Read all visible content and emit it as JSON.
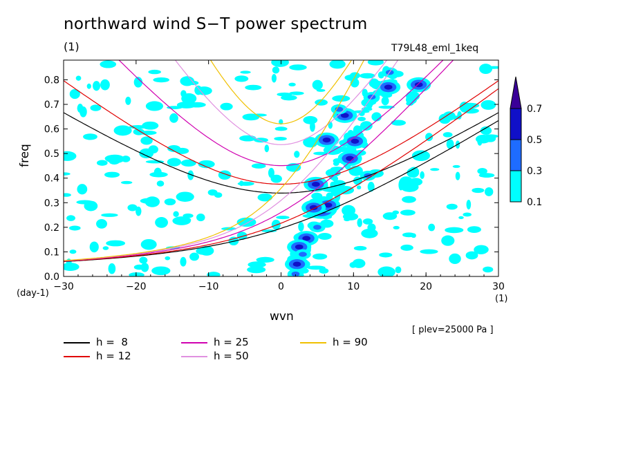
{
  "page": {
    "title": "northward wind S−T power spectrum",
    "unit_top": "(1)",
    "run_name": "T79L48_eml_1keq",
    "plev": "[ plev=25000 Pa ]"
  },
  "chart_data": {
    "type": "heatmap",
    "title": "northward wind S−T power spectrum",
    "xlabel": "wvn",
    "ylabel": "freq",
    "x_unit": "(1)",
    "y_unit": "(day-1)",
    "xlim": [
      -30,
      30
    ],
    "ylim": [
      0,
      0.88
    ],
    "x_ticks": [
      "−30",
      "−20",
      "−10",
      "0",
      "10",
      "20",
      "30"
    ],
    "x_tick_values": [
      -30,
      -20,
      -10,
      0,
      10,
      20,
      30
    ],
    "y_ticks": [
      "0.0",
      "0.1",
      "0.2",
      "0.3",
      "0.4",
      "0.5",
      "0.6",
      "0.7",
      "0.8"
    ],
    "y_tick_values": [
      0,
      0.1,
      0.2,
      0.3,
      0.4,
      0.5,
      0.6,
      0.7,
      0.8
    ],
    "colorbar": {
      "levels": [
        "0.1",
        "0.3",
        "0.5",
        "0.7"
      ],
      "colors": [
        "#00ffff",
        "#1e6cff",
        "#1010c8",
        "#3a0098"
      ]
    },
    "dispersion_curves": [
      {
        "label": "h =  8",
        "h": 8,
        "color": "#000000"
      },
      {
        "label": "h = 12",
        "h": 12,
        "color": "#e00000"
      },
      {
        "label": "h = 25",
        "h": 25,
        "color": "#d000b0"
      },
      {
        "label": "h = 50",
        "h": 50,
        "color": "#e090e0"
      },
      {
        "label": "h = 90",
        "h": 90,
        "color": "#f0c000"
      }
    ],
    "blobs": [
      {
        "x": 5.5,
        "y": 0.275,
        "level": 3
      },
      {
        "x": 6.5,
        "y": 0.29,
        "level": 2
      },
      {
        "x": 4.5,
        "y": 0.28,
        "level": 2
      },
      {
        "x": 3.5,
        "y": 0.155,
        "level": 2
      },
      {
        "x": 2.5,
        "y": 0.12,
        "level": 2
      },
      {
        "x": 2.2,
        "y": 0.05,
        "level": 2
      },
      {
        "x": 4.8,
        "y": 0.375,
        "level": 2
      },
      {
        "x": 6.3,
        "y": 0.555,
        "level": 2
      },
      {
        "x": 10.2,
        "y": 0.55,
        "level": 2
      },
      {
        "x": 9.5,
        "y": 0.48,
        "level": 2
      },
      {
        "x": 8.8,
        "y": 0.655,
        "level": 2
      },
      {
        "x": 12.0,
        "y": 0.41,
        "level": 1
      },
      {
        "x": 14.8,
        "y": 0.77,
        "level": 2
      },
      {
        "x": 19.0,
        "y": 0.78,
        "level": 2
      },
      {
        "x": 12.5,
        "y": 0.73,
        "level": 1
      },
      {
        "x": 8.0,
        "y": 0.68,
        "level": 1
      },
      {
        "x": 15.0,
        "y": 0.83,
        "level": 1
      },
      {
        "x": 5.0,
        "y": 0.2,
        "level": 1
      },
      {
        "x": 3.0,
        "y": 0.09,
        "level": 1
      },
      {
        "x": 2.0,
        "y": 0.01,
        "level": 1
      }
    ]
  },
  "legend": {
    "items": [
      {
        "label": "h =  8",
        "color": "#000000"
      },
      {
        "label": "h = 12",
        "color": "#e00000"
      },
      {
        "label": "h = 25",
        "color": "#d000b0"
      },
      {
        "label": "h = 50",
        "color": "#e090e0"
      },
      {
        "label": "h = 90",
        "color": "#f0c000"
      }
    ]
  }
}
